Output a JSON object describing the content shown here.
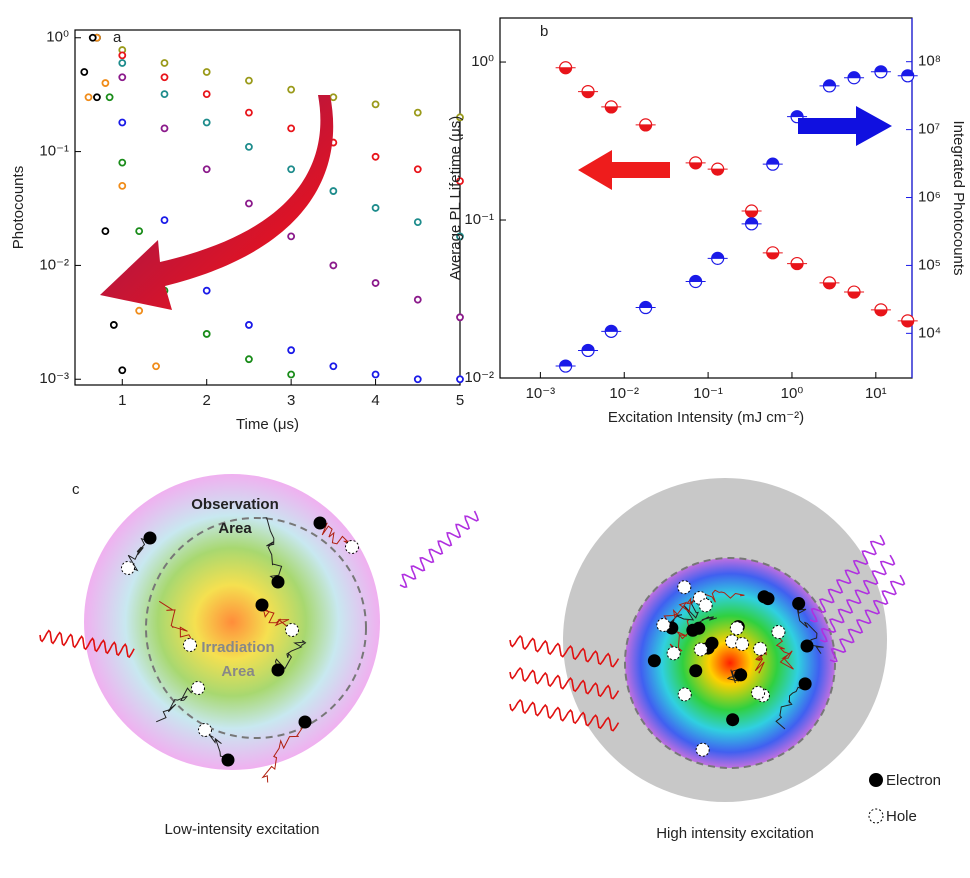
{
  "chart_data": [
    {
      "type": "scatter",
      "label": "a",
      "xlabel": "Time (μs)",
      "ylabel": "Photocounts",
      "xlim": [
        0.44,
        5
      ],
      "xticks": [
        1,
        2,
        3,
        4,
        5
      ],
      "ylim": [
        0.00089,
        1.17
      ],
      "ylog": true,
      "yticks": [
        {
          "value": 0.001,
          "label": "10⁻³"
        },
        {
          "value": 0.01,
          "label": "10⁻²"
        },
        {
          "value": 0.1,
          "label": "10⁻¹"
        },
        {
          "value": 1,
          "label": "10⁰"
        }
      ],
      "series": [
        {
          "color": "#9a9a1a",
          "x": [
            0.7,
            1,
            1.5,
            2,
            2.5,
            3,
            3.5,
            4,
            4.5,
            5
          ],
          "values": [
            1,
            0.78,
            0.6,
            0.5,
            0.42,
            0.35,
            0.3,
            0.26,
            0.22,
            0.2
          ]
        },
        {
          "color": "#e8141a",
          "x": [
            0.7,
            1,
            1.5,
            2,
            2.5,
            3,
            3.5,
            4,
            4.5,
            5
          ],
          "values": [
            1,
            0.7,
            0.45,
            0.32,
            0.22,
            0.16,
            0.12,
            0.09,
            0.07,
            0.055
          ]
        },
        {
          "color": "#1e8c8c",
          "x": [
            0.7,
            1,
            1.5,
            2,
            2.5,
            3,
            3.5,
            4,
            4.5,
            5
          ],
          "values": [
            1,
            0.6,
            0.32,
            0.18,
            0.11,
            0.07,
            0.045,
            0.032,
            0.024,
            0.018
          ]
        },
        {
          "color": "#8b1a8b",
          "x": [
            0.7,
            1,
            1.5,
            2,
            2.5,
            3,
            3.5,
            4,
            4.5,
            5
          ],
          "values": [
            1,
            0.45,
            0.16,
            0.07,
            0.035,
            0.018,
            0.01,
            0.007,
            0.005,
            0.0035
          ]
        },
        {
          "color": "#1a1ae8",
          "x": [
            0.7,
            1,
            1.5,
            2,
            2.5,
            3,
            3.5,
            4,
            4.5,
            5
          ],
          "values": [
            1,
            0.18,
            0.025,
            0.006,
            0.003,
            0.0018,
            0.0013,
            0.0011,
            0.001,
            0.001
          ]
        },
        {
          "color": "#1a8c1a",
          "x": [
            0.7,
            0.85,
            1,
            1.2,
            1.5,
            2,
            2.5,
            3
          ],
          "values": [
            1,
            0.3,
            0.08,
            0.02,
            0.006,
            0.0025,
            0.0015,
            0.0011
          ]
        },
        {
          "color": "#f08c1a",
          "x": [
            0.6,
            0.7,
            0.8,
            1,
            1.2,
            1.4
          ],
          "values": [
            0.3,
            1,
            0.4,
            0.05,
            0.004,
            0.0013
          ]
        },
        {
          "color": "#000000",
          "x": [
            0.55,
            0.65,
            0.7,
            0.8,
            0.9,
            1.0
          ],
          "values": [
            0.5,
            1,
            0.3,
            0.02,
            0.003,
            0.0012
          ]
        }
      ]
    },
    {
      "type": "scatter",
      "label": "b",
      "xlabel": "Excitation Intensity (mJ cm⁻²)",
      "ylabel": "Average PL Lifetime (μs)",
      "y2label": "Integrated Photocounts",
      "xlog": true,
      "xlim": [
        0.00033,
        27
      ],
      "xticks": [
        {
          "value": 0.001,
          "label": "10⁻³"
        },
        {
          "value": 0.01,
          "label": "10⁻²"
        },
        {
          "value": 0.1,
          "label": "10⁻¹"
        },
        {
          "value": 1,
          "label": "10⁰"
        },
        {
          "value": 10,
          "label": "10¹"
        }
      ],
      "ylog": true,
      "ylim": [
        0.01,
        1.9
      ],
      "yticks": [
        {
          "value": 0.01,
          "label": "10⁻²"
        },
        {
          "value": 0.1,
          "label": "10⁻¹"
        },
        {
          "value": 1,
          "label": "10⁰"
        }
      ],
      "y2lim": [
        2200,
        440000000
      ],
      "y2ticks": [
        {
          "value": 10000,
          "label": "10⁴"
        },
        {
          "value": 100000,
          "label": "10⁵"
        },
        {
          "value": 1000000,
          "label": "10⁶"
        },
        {
          "value": 10000000,
          "label": "10⁷"
        },
        {
          "value": 100000000,
          "label": "10⁸"
        }
      ],
      "series": [
        {
          "color": "#e8141a",
          "x": [
            0.002,
            0.0037,
            0.007,
            0.018,
            0.071,
            0.13,
            0.33,
            0.59,
            1.15,
            2.8,
            5.5,
            11.5,
            24
          ],
          "values": [
            0.92,
            0.65,
            0.52,
            0.4,
            0.23,
            0.21,
            0.114,
            0.062,
            0.053,
            0.04,
            0.035,
            0.027,
            0.023
          ]
        },
        {
          "color": "#1a1ae8",
          "axis": "y2",
          "x": [
            0.002,
            0.0037,
            0.007,
            0.018,
            0.071,
            0.13,
            0.33,
            0.59,
            1.15,
            2.8,
            5.5,
            11.5,
            24
          ],
          "values": [
            3300,
            5600,
            10700,
            24000,
            58000,
            127000,
            410000,
            3100000,
            15500000,
            44000000,
            58000000,
            71000000,
            62000000
          ]
        }
      ]
    }
  ],
  "diagram": {
    "label": "c",
    "observation": [
      "Observation",
      "Area"
    ],
    "irradiation": [
      "Irradiation",
      "Area"
    ],
    "low_caption": "Low-intensity excitation",
    "high_caption": "High intensity excitation",
    "legend": [
      "Electron",
      "Hole"
    ]
  }
}
